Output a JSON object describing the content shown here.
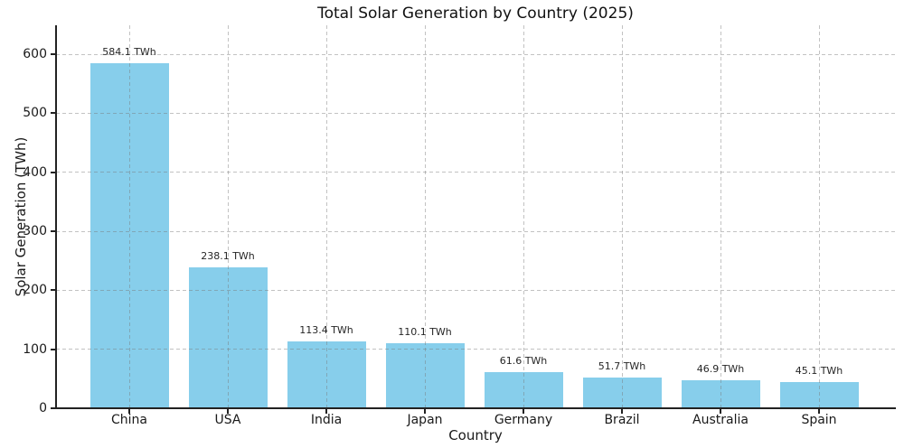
{
  "chart_data": {
    "type": "bar",
    "title": "Total Solar Generation by Country (2025)",
    "xlabel": "Country",
    "ylabel": "Solar Generation (TWh)",
    "categories": [
      "China",
      "USA",
      "India",
      "Japan",
      "Germany",
      "Brazil",
      "Australia",
      "Spain"
    ],
    "values": [
      584.1,
      238.1,
      113.4,
      110.1,
      61.6,
      51.7,
      46.9,
      45.1
    ],
    "bar_labels": [
      "584.1 TWh",
      "238.1 TWh",
      "113.4 TWh",
      "110.1 TWh",
      "61.6 TWh",
      "51.7 TWh",
      "46.9 TWh",
      "45.1 TWh"
    ],
    "yticks": [
      0,
      100,
      200,
      300,
      400,
      500,
      600
    ],
    "ylim": [
      0,
      649
    ],
    "grid": true,
    "grid_style": "dashed",
    "legend": "none",
    "bar_color": "#87CEEB",
    "grid_color": "#c8c8c8",
    "spine_color": "#222222",
    "text_color": "#1a1a1a"
  }
}
